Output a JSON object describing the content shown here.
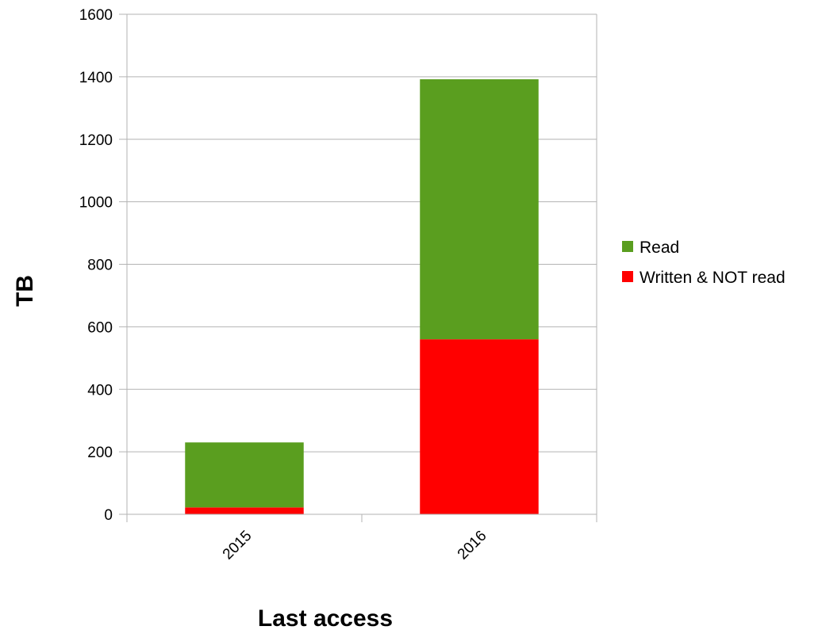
{
  "chart_data": {
    "type": "bar",
    "stacked": true,
    "categories": [
      "2015",
      "2016"
    ],
    "series": [
      {
        "name": "Written & NOT read",
        "color": "#ff0000",
        "values": [
          22,
          560
        ]
      },
      {
        "name": "Read",
        "color": "#5a9e1f",
        "values": [
          208,
          832
        ]
      }
    ],
    "xlabel": "Last access",
    "ylabel": "TB",
    "ylim": [
      0,
      1600
    ],
    "yticks": [
      "0",
      "200",
      "400",
      "600",
      "800",
      "1000",
      "1200",
      "1400",
      "1600"
    ],
    "grid": true,
    "legend_position": "right",
    "legend_order": [
      "Read",
      "Written & NOT read"
    ]
  }
}
